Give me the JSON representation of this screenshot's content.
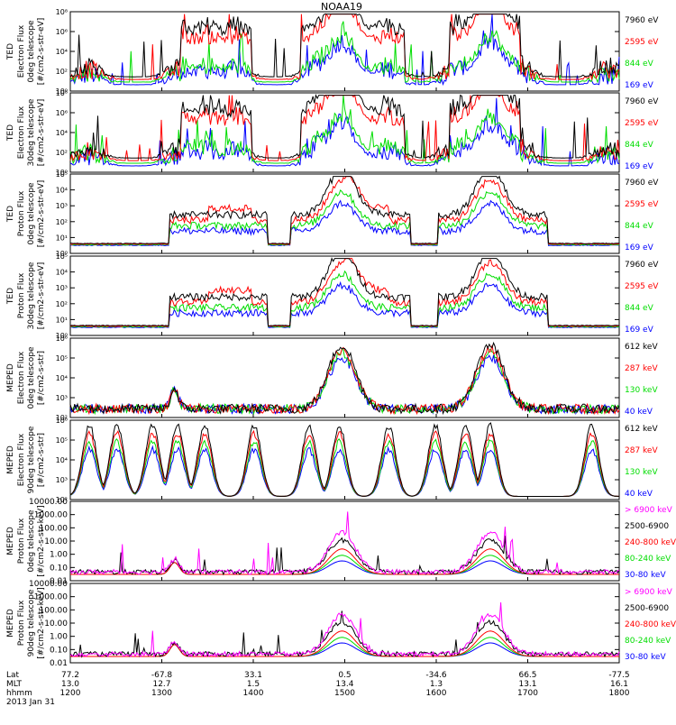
{
  "title": "NOAA19",
  "colors": {
    "black": "#000000",
    "red": "#ff0000",
    "green": "#00dd00",
    "blue": "#0000ff",
    "magenta": "#ff00ff",
    "frame": "#000000"
  },
  "footer": {
    "rows": [
      {
        "label": "Lat",
        "values": [
          "77.2",
          "-67.8",
          "33.1",
          "0.5",
          "-34.6",
          "66.5",
          "-77.5"
        ]
      },
      {
        "label": "MLT",
        "values": [
          "13.0",
          "12.7",
          "1.5",
          "13.4",
          "1.3",
          "13.1",
          "16.1"
        ]
      },
      {
        "label": "hhmm",
        "values": [
          "1200",
          "1300",
          "1400",
          "1500",
          "1600",
          "1700",
          "1800"
        ]
      }
    ],
    "date": "2013 Jan 31"
  },
  "chart_data": [
    {
      "type": "line",
      "instrument": "TED",
      "ylabel": [
        "TED",
        "Electron Flux",
        "0deg telescope",
        "[#/cm2-s-str-eV]"
      ],
      "ylim_exp": [
        0,
        8
      ],
      "yticks": [
        "10⁰",
        "10²",
        "10⁴",
        "10⁶",
        "10⁸"
      ],
      "series": [
        {
          "name": "7960 eV",
          "color": "black"
        },
        {
          "name": "2595 eV",
          "color": "red"
        },
        {
          "name": "844 eV",
          "color": "green"
        },
        {
          "name": "169 eV",
          "color": "blue"
        }
      ]
    },
    {
      "type": "line",
      "instrument": "TED",
      "ylabel": [
        "TED",
        "Electron Flux",
        "30deg telescope",
        "[#/cm2-s-str-eV]"
      ],
      "ylim_exp": [
        0,
        8
      ],
      "yticks": [
        "10⁰",
        "10²",
        "10⁴",
        "10⁶",
        "10⁸"
      ],
      "series": [
        {
          "name": "7960 eV",
          "color": "black"
        },
        {
          "name": "2595 eV",
          "color": "red"
        },
        {
          "name": "844 eV",
          "color": "green"
        },
        {
          "name": "169 eV",
          "color": "blue"
        }
      ]
    },
    {
      "type": "line",
      "instrument": "TED",
      "ylabel": [
        "TED",
        "Proton Flux",
        "0deg telescope",
        "[#/cm2-s-str-eV]"
      ],
      "ylim_exp": [
        0,
        5
      ],
      "yticks": [
        "10⁰",
        "10¹",
        "10²",
        "10³",
        "10⁴",
        "10⁵"
      ],
      "series": [
        {
          "name": "7960 eV",
          "color": "black"
        },
        {
          "name": "2595 eV",
          "color": "red"
        },
        {
          "name": "844 eV",
          "color": "green"
        },
        {
          "name": "169 eV",
          "color": "blue"
        }
      ]
    },
    {
      "type": "line",
      "instrument": "TED",
      "ylabel": [
        "TED",
        "Proton Flux",
        "30deg telescope",
        "[#/cm2-s-str-eV]"
      ],
      "ylim_exp": [
        0,
        5
      ],
      "yticks": [
        "10⁰",
        "10¹",
        "10²",
        "10³",
        "10⁴",
        "10⁵"
      ],
      "series": [
        {
          "name": "7960 eV",
          "color": "black"
        },
        {
          "name": "2595 eV",
          "color": "red"
        },
        {
          "name": "844 eV",
          "color": "green"
        },
        {
          "name": "169 eV",
          "color": "blue"
        }
      ]
    },
    {
      "type": "line",
      "instrument": "MEPED",
      "ylabel": [
        "MEPED",
        "Electron Flux",
        "0deg telescope",
        "[#/cm2-s-str]"
      ],
      "ylim_exp": [
        2,
        7
      ],
      "yticks": [
        "10²",
        "10³",
        "10⁴",
        "10⁵",
        "10⁶"
      ],
      "series": [
        {
          "name": "612 keV",
          "color": "black"
        },
        {
          "name": "287 keV",
          "color": "red"
        },
        {
          "name": "130 keV",
          "color": "green"
        },
        {
          "name": "40 keV",
          "color": "blue"
        }
      ]
    },
    {
      "type": "line",
      "instrument": "MEPED",
      "ylabel": [
        "MEPED",
        "Electron Flux",
        "90deg telescope",
        "[#/cm2-s-str]"
      ],
      "ylim_exp": [
        2,
        6
      ],
      "yticks": [
        "10²",
        "10³",
        "10⁴",
        "10⁵",
        "10⁶"
      ],
      "series": [
        {
          "name": "612 keV",
          "color": "black"
        },
        {
          "name": "287 keV",
          "color": "red"
        },
        {
          "name": "130 keV",
          "color": "green"
        },
        {
          "name": "40 keV",
          "color": "blue"
        }
      ]
    },
    {
      "type": "line",
      "instrument": "MEPED",
      "ylabel": [
        "MEPED",
        "Proton Flux",
        "0deg telescope",
        "[#/cm2-s-str-keV]"
      ],
      "ylim_exp": [
        -2,
        4
      ],
      "yticks": [
        "0.01",
        "0.10",
        "1.00",
        "10.00",
        "100.00",
        "1000.00",
        "10000.00"
      ],
      "series": [
        {
          "name": "> 6900 keV",
          "color": "magenta"
        },
        {
          "name": "2500-6900",
          "color": "black"
        },
        {
          "name": "240-800 keV",
          "color": "red"
        },
        {
          "name": "80-240 keV",
          "color": "green"
        },
        {
          "name": "30-80 keV",
          "color": "blue"
        }
      ]
    },
    {
      "type": "line",
      "instrument": "MEPED",
      "ylabel": [
        "MEPED",
        "Proton Flux",
        "90deg telescope",
        "[#/cm2-s-str-keV]"
      ],
      "ylim_exp": [
        -2,
        4
      ],
      "yticks": [
        "0.01",
        "0.10",
        "1.00",
        "10.00",
        "100.00",
        "1000.00",
        "10000.00"
      ],
      "series": [
        {
          "name": "> 6900 keV",
          "color": "magenta"
        },
        {
          "name": "2500-6900",
          "color": "black"
        },
        {
          "name": "240-800 keV",
          "color": "red"
        },
        {
          "name": "80-240 keV",
          "color": "green"
        },
        {
          "name": "30-80 keV",
          "color": "blue"
        }
      ]
    }
  ]
}
